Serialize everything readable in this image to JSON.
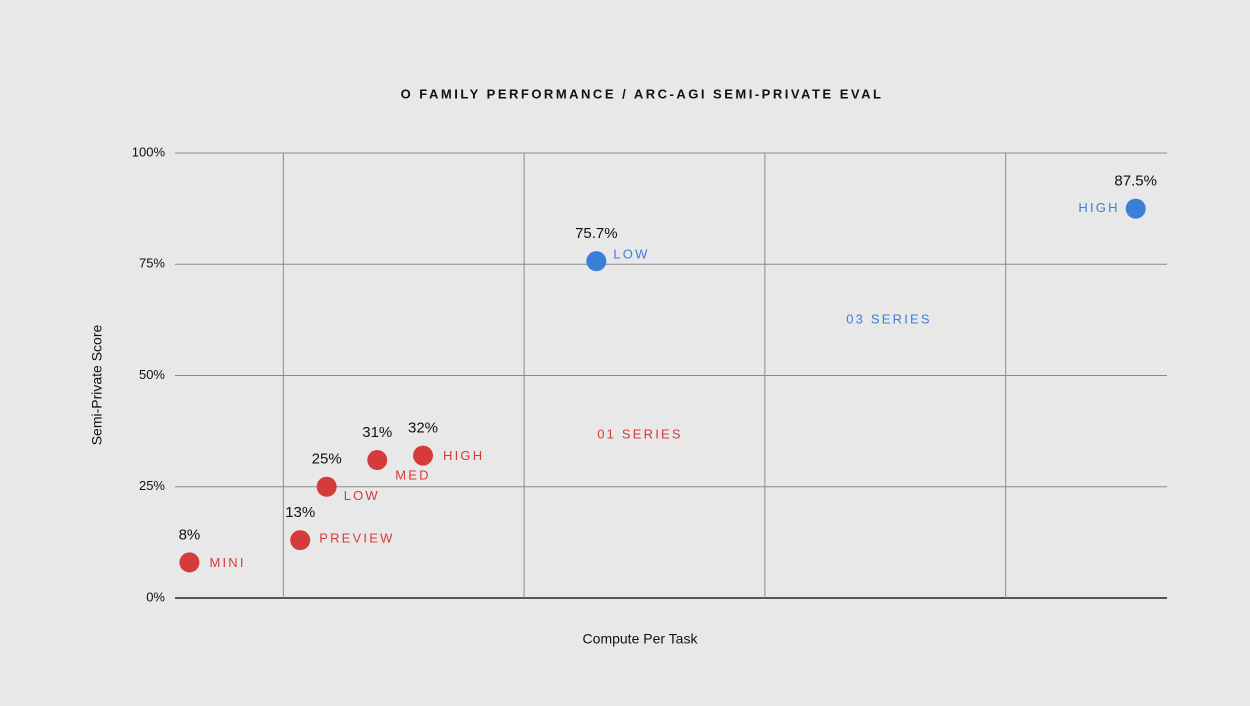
{
  "chart_data": {
    "type": "scatter",
    "title": "O FAMILY PERFORMANCE / ARC-AGI SEMI-PRIVATE EVAL",
    "x_label": "Compute Per Task",
    "y_label": "Semi-Private Score",
    "xlim": [
      0.55,
      4.67
    ],
    "xticks": [
      1,
      2,
      3,
      4
    ],
    "ylim": [
      0,
      100
    ],
    "yticks": [
      {
        "value": 0,
        "label": "0%"
      },
      {
        "value": 25,
        "label": "25%"
      },
      {
        "value": 50,
        "label": "50%"
      },
      {
        "value": 75,
        "label": "75%"
      },
      {
        "value": 100,
        "label": "100%"
      }
    ],
    "grid": true,
    "series": [
      {
        "name": "01 SERIES",
        "color": "#d63b3b",
        "x": [
          0.61,
          1.07,
          1.18,
          1.39,
          1.58
        ],
        "values": [
          8,
          13,
          25,
          31,
          32
        ],
        "value_labels": [
          "8%",
          "13%",
          "25%",
          "31%",
          "32%"
        ],
        "point_labels": [
          "MINI",
          "PREVIEW",
          "LOW",
          "MED",
          "HIGH"
        ]
      },
      {
        "name": "03 SERIES",
        "color": "#3b7fd9",
        "x": [
          2.3,
          4.54
        ],
        "values": [
          75.7,
          87.5
        ],
        "value_labels": [
          "75.7%",
          "87.5%"
        ],
        "point_labels": [
          "LOW",
          "HIGH"
        ]
      }
    ]
  }
}
